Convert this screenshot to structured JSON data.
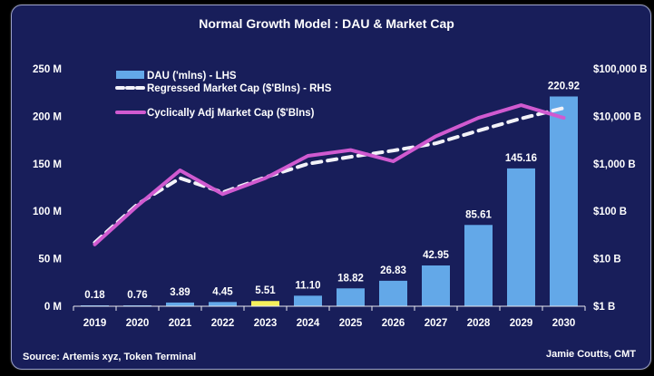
{
  "chart_data": {
    "type": "bar",
    "title": "Normal Growth Model : DAU & Market Cap",
    "categories": [
      "2019",
      "2020",
      "2021",
      "2022",
      "2023",
      "2024",
      "2025",
      "2026",
      "2027",
      "2028",
      "2029",
      "2030"
    ],
    "series": [
      {
        "name": "DAU ('mlns) - LHS",
        "type": "bar",
        "axis": "left",
        "color": "#63a8e8",
        "highlight_color": "#f5f05a",
        "highlight_index": 4,
        "values": [
          0.18,
          0.76,
          3.89,
          4.45,
          5.51,
          11.1,
          18.82,
          26.83,
          42.95,
          85.61,
          145.16,
          220.92
        ],
        "labels": [
          "0.18",
          "0.76",
          "3.89",
          "4.45",
          "5.51",
          "11.10",
          "18.82",
          "26.83",
          "42.95",
          "85.61",
          "145.16",
          "220.92"
        ]
      },
      {
        "name": "Regressed Market Cap ($'Blns) - RHS",
        "type": "line",
        "style": "dashed",
        "axis": "right",
        "color": "#f2f2f8",
        "values": [
          22,
          140,
          500,
          250,
          520,
          1000,
          1400,
          1900,
          2700,
          5000,
          9000,
          15000
        ]
      },
      {
        "name": "Cyclically Adj Market Cap ($'Blns)",
        "type": "line",
        "style": "solid",
        "axis": "right",
        "color": "#d05ad0",
        "values": [
          20,
          130,
          730,
          230,
          500,
          1470,
          1950,
          1130,
          3800,
          9300,
          17200,
          9300
        ]
      }
    ],
    "left_axis": {
      "ticks": [
        "0 M",
        "50 M",
        "100 M",
        "150 M",
        "200 M",
        "250 M"
      ],
      "tick_values": [
        0,
        50,
        100,
        150,
        200,
        250
      ],
      "range": [
        0,
        250
      ]
    },
    "right_axis": {
      "scale": "log",
      "ticks": [
        "$1 B",
        "$10 B",
        "$100 B",
        "$1,000 B",
        "$10,000 B",
        "$100,000 B"
      ],
      "tick_values": [
        1,
        10,
        100,
        1000,
        10000,
        100000
      ],
      "range": [
        1,
        100000
      ]
    },
    "legend": {
      "placement": "top-left",
      "items": [
        "DAU ('mlns) - LHS",
        "Regressed Market Cap ($'Blns) - RHS",
        "Cyclically Adj Market Cap ($'Blns)"
      ]
    },
    "grid": false,
    "xlabel": "",
    "ylabel": ""
  },
  "footer": {
    "source": "Source: Artemis xyz, Token Terminal",
    "author": "Jamie Coutts, CMT"
  },
  "colors": {
    "background": "#181e5a",
    "text": "#ffffff"
  }
}
